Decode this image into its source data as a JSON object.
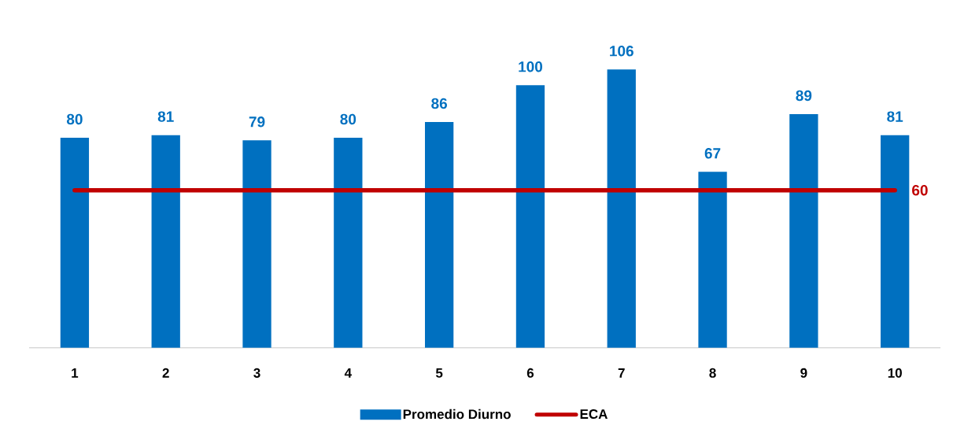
{
  "chart_data": {
    "type": "bar",
    "categories": [
      "1",
      "2",
      "3",
      "4",
      "5",
      "6",
      "7",
      "8",
      "9",
      "10"
    ],
    "series": [
      {
        "name": "Promedio Diurno",
        "color": "#0070c0",
        "values": [
          80,
          81,
          79,
          80,
          86,
          100,
          106,
          67,
          89,
          81
        ],
        "value_labels": [
          "80",
          "81",
          "79",
          "80",
          "86",
          "100",
          "106",
          "67",
          "89",
          "81"
        ]
      },
      {
        "name": "ECA",
        "type": "line",
        "color": "#c00000",
        "values": [
          60,
          60,
          60,
          60,
          60,
          60,
          60,
          60,
          60,
          60
        ],
        "value_labels": [
          null,
          null,
          null,
          null,
          null,
          null,
          null,
          null,
          null,
          "60"
        ]
      }
    ],
    "tick_labels": "x",
    "legend": "bottom"
  }
}
